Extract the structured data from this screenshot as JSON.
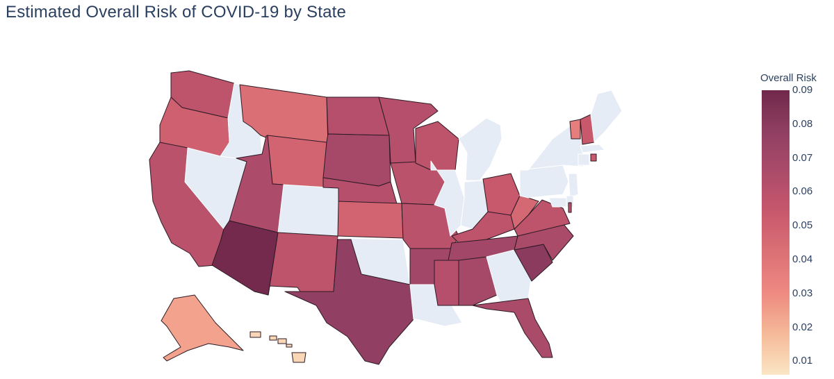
{
  "title": "Estimated Overall Risk of COVID-19 by State",
  "colorbar": {
    "title": "Overall Risk",
    "min": 0.006,
    "max": 0.09,
    "ticks": [
      "0.01",
      "0.02",
      "0.03",
      "0.04",
      "0.05",
      "0.06",
      "0.07",
      "0.08",
      "0.09"
    ],
    "colorscale": [
      "#fbe6c5",
      "#f5ba98",
      "#ee8a82",
      "#dc7176",
      "#c8586c",
      "#ab4b6a",
      "#8f3f62",
      "#70284a"
    ]
  },
  "nodata_color": "#e5ecf6",
  "states": [
    {
      "abbr": "WA",
      "risk": 0.058
    },
    {
      "abbr": "OR",
      "risk": 0.05
    },
    {
      "abbr": "CA",
      "risk": 0.06
    },
    {
      "abbr": "ID",
      "risk": null
    },
    {
      "abbr": "NV",
      "risk": null
    },
    {
      "abbr": "MT",
      "risk": 0.043
    },
    {
      "abbr": "WY",
      "risk": 0.048
    },
    {
      "abbr": "UT",
      "risk": 0.065
    },
    {
      "abbr": "AZ",
      "risk": 0.089
    },
    {
      "abbr": "CO",
      "risk": null
    },
    {
      "abbr": "NM",
      "risk": 0.058
    },
    {
      "abbr": "ND",
      "risk": 0.062
    },
    {
      "abbr": "SD",
      "risk": 0.068
    },
    {
      "abbr": "NE",
      "risk": 0.062
    },
    {
      "abbr": "KS",
      "risk": 0.048
    },
    {
      "abbr": "OK",
      "risk": null
    },
    {
      "abbr": "TX",
      "risk": 0.077
    },
    {
      "abbr": "MN",
      "risk": 0.062
    },
    {
      "abbr": "IA",
      "risk": 0.06
    },
    {
      "abbr": "MO",
      "risk": 0.06
    },
    {
      "abbr": "AR",
      "risk": 0.07
    },
    {
      "abbr": "LA",
      "risk": null
    },
    {
      "abbr": "WI",
      "risk": 0.058
    },
    {
      "abbr": "IL",
      "risk": null
    },
    {
      "abbr": "MI",
      "risk": null
    },
    {
      "abbr": "IN",
      "risk": null
    },
    {
      "abbr": "OH",
      "risk": 0.054
    },
    {
      "abbr": "KY",
      "risk": 0.058
    },
    {
      "abbr": "TN",
      "risk": 0.07
    },
    {
      "abbr": "MS",
      "risk": 0.062
    },
    {
      "abbr": "AL",
      "risk": 0.068
    },
    {
      "abbr": "GA",
      "risk": null
    },
    {
      "abbr": "FL",
      "risk": 0.066
    },
    {
      "abbr": "SC",
      "risk": 0.08
    },
    {
      "abbr": "NC",
      "risk": 0.066
    },
    {
      "abbr": "VA",
      "risk": 0.058
    },
    {
      "abbr": "WV",
      "risk": 0.046
    },
    {
      "abbr": "PA",
      "risk": null
    },
    {
      "abbr": "NY",
      "risk": null
    },
    {
      "abbr": "VT",
      "risk": 0.036
    },
    {
      "abbr": "NH",
      "risk": 0.054
    },
    {
      "abbr": "ME",
      "risk": null
    },
    {
      "abbr": "MA",
      "risk": null
    },
    {
      "abbr": "CT",
      "risk": null
    },
    {
      "abbr": "RI",
      "risk": 0.054
    },
    {
      "abbr": "NJ",
      "risk": null
    },
    {
      "abbr": "DE",
      "risk": null
    },
    {
      "abbr": "MD",
      "risk": null
    },
    {
      "abbr": "DC",
      "risk": 0.058
    },
    {
      "abbr": "AK",
      "risk": 0.024
    },
    {
      "abbr": "HI",
      "risk": 0.01
    }
  ]
}
